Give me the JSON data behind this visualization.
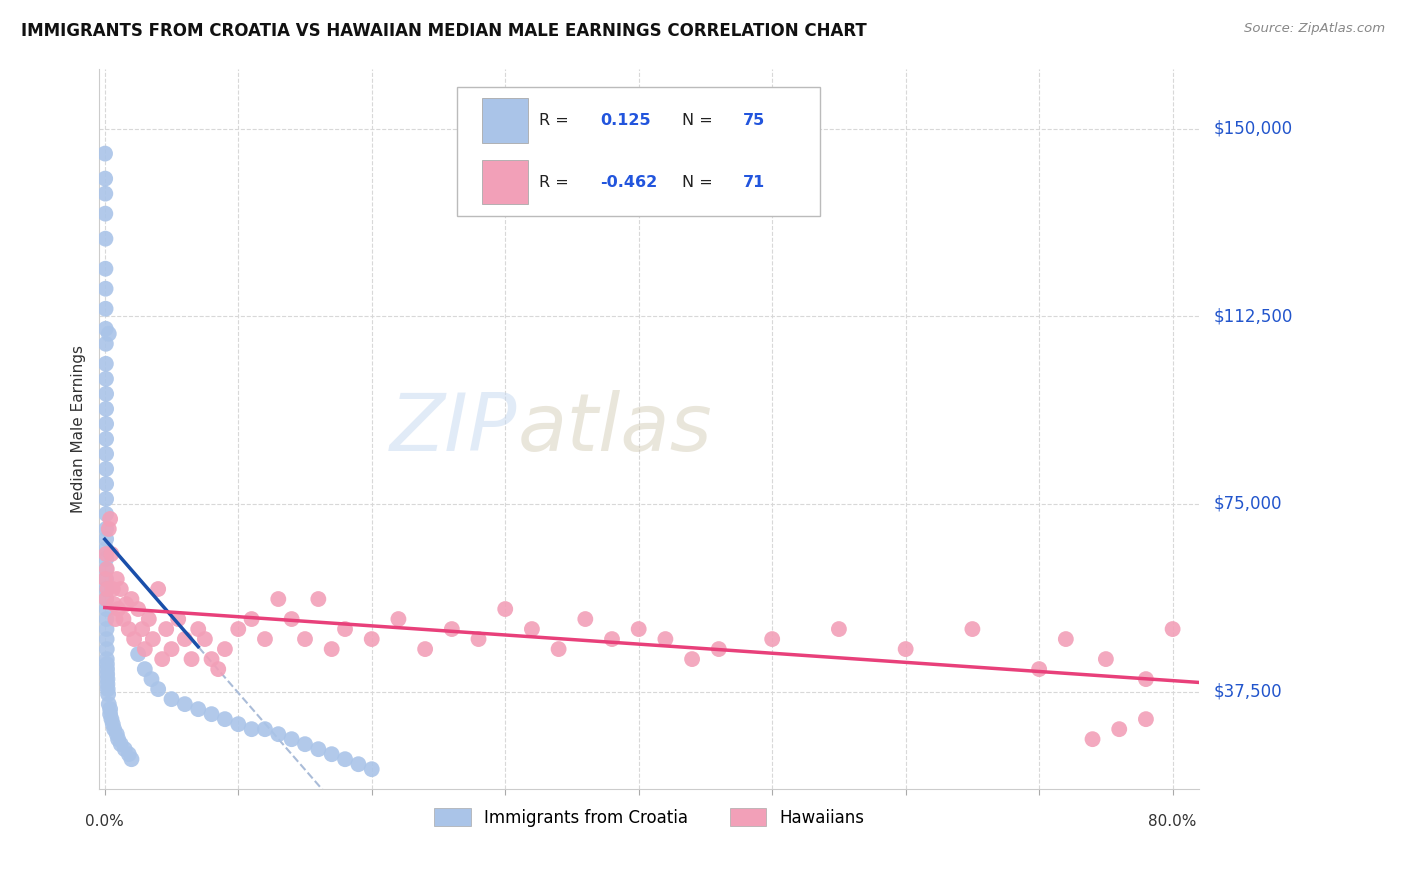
{
  "title": "IMMIGRANTS FROM CROATIA VS HAWAIIAN MEDIAN MALE EARNINGS CORRELATION CHART",
  "source": "Source: ZipAtlas.com",
  "ylabel": "Median Male Earnings",
  "y_ticks": [
    37500,
    75000,
    112500,
    150000
  ],
  "y_tick_labels": [
    "$37,500",
    "$75,000",
    "$112,500",
    "$150,000"
  ],
  "ylim": [
    18000,
    162000
  ],
  "xlim": [
    -0.004,
    0.82
  ],
  "blue_color": "#aac4e8",
  "pink_color": "#f2a0b8",
  "blue_line_color": "#1a4faa",
  "pink_line_color": "#e8407a",
  "blue_dashed_color": "#aabcd8",
  "watermark": "ZIPatlas",
  "grid_color": "#d8d8d8",
  "blue_x": [
    0.0002,
    0.0003,
    0.0004,
    0.0004,
    0.0005,
    0.0005,
    0.0006,
    0.0006,
    0.0007,
    0.0008,
    0.0008,
    0.0009,
    0.001,
    0.001,
    0.001,
    0.001,
    0.001,
    0.001,
    0.001,
    0.001,
    0.001,
    0.001,
    0.001,
    0.001,
    0.001,
    0.001,
    0.001,
    0.001,
    0.001,
    0.0012,
    0.0012,
    0.0013,
    0.0014,
    0.0015,
    0.0015,
    0.0016,
    0.0017,
    0.0018,
    0.002,
    0.002,
    0.0022,
    0.0025,
    0.003,
    0.003,
    0.004,
    0.004,
    0.005,
    0.006,
    0.007,
    0.009,
    0.01,
    0.012,
    0.015,
    0.018,
    0.02,
    0.025,
    0.03,
    0.035,
    0.04,
    0.05,
    0.06,
    0.07,
    0.08,
    0.09,
    0.1,
    0.11,
    0.12,
    0.13,
    0.14,
    0.15,
    0.16,
    0.17,
    0.18,
    0.19,
    0.2
  ],
  "blue_y": [
    145000,
    140000,
    137000,
    133000,
    128000,
    122000,
    118000,
    114000,
    110000,
    107000,
    103000,
    100000,
    97000,
    94000,
    91000,
    88000,
    85000,
    82000,
    79000,
    76000,
    73000,
    70000,
    68000,
    66000,
    64000,
    62000,
    60000,
    58000,
    56000,
    54000,
    52000,
    50000,
    48000,
    46000,
    44000,
    43000,
    42000,
    41000,
    40000,
    39000,
    38000,
    37000,
    109000,
    35000,
    34000,
    33000,
    32000,
    31000,
    30000,
    29000,
    28000,
    27000,
    26000,
    25000,
    24000,
    45000,
    42000,
    40000,
    38000,
    36000,
    35000,
    34000,
    33000,
    32000,
    31000,
    30000,
    30000,
    29000,
    28000,
    27000,
    26000,
    25000,
    24000,
    23000,
    22000
  ],
  "pink_x": [
    0.0005,
    0.001,
    0.001,
    0.0015,
    0.002,
    0.003,
    0.004,
    0.005,
    0.006,
    0.007,
    0.008,
    0.009,
    0.01,
    0.012,
    0.014,
    0.016,
    0.018,
    0.02,
    0.022,
    0.025,
    0.028,
    0.03,
    0.033,
    0.036,
    0.04,
    0.043,
    0.046,
    0.05,
    0.055,
    0.06,
    0.065,
    0.07,
    0.075,
    0.08,
    0.085,
    0.09,
    0.1,
    0.11,
    0.12,
    0.13,
    0.14,
    0.15,
    0.16,
    0.17,
    0.18,
    0.2,
    0.22,
    0.24,
    0.26,
    0.28,
    0.3,
    0.32,
    0.34,
    0.36,
    0.38,
    0.4,
    0.42,
    0.44,
    0.46,
    0.5,
    0.55,
    0.6,
    0.65,
    0.7,
    0.72,
    0.75,
    0.78,
    0.8,
    0.78,
    0.76,
    0.74
  ],
  "pink_y": [
    60000,
    65000,
    56000,
    62000,
    58000,
    70000,
    72000,
    65000,
    58000,
    55000,
    52000,
    60000,
    54000,
    58000,
    52000,
    55000,
    50000,
    56000,
    48000,
    54000,
    50000,
    46000,
    52000,
    48000,
    58000,
    44000,
    50000,
    46000,
    52000,
    48000,
    44000,
    50000,
    48000,
    44000,
    42000,
    46000,
    50000,
    52000,
    48000,
    56000,
    52000,
    48000,
    56000,
    46000,
    50000,
    48000,
    52000,
    46000,
    50000,
    48000,
    54000,
    50000,
    46000,
    52000,
    48000,
    50000,
    48000,
    44000,
    46000,
    48000,
    50000,
    46000,
    50000,
    42000,
    48000,
    44000,
    40000,
    50000,
    32000,
    30000,
    28000
  ]
}
